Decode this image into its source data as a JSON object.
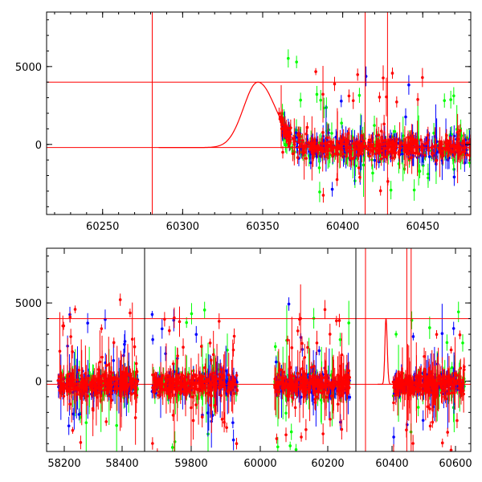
{
  "chart_data": [
    {
      "type": "scatter",
      "panel": "top",
      "x_ticks": [
        60250,
        60300,
        60350,
        60400,
        60450
      ],
      "y_ticks": [
        0,
        5000
      ],
      "xlim": [
        60215,
        60480
      ],
      "ylim": [
        -4500,
        8500
      ],
      "hlines": [
        4000,
        -200
      ],
      "vlines": [
        60281,
        60414,
        60428
      ],
      "model_curve": {
        "peak_x": 60347,
        "peak_y": 4000,
        "base_y": -200,
        "rise_sigma": 9,
        "decay_sigma": 5
      },
      "series": [
        {
          "color": "#ff0000",
          "x_start": 60360,
          "x_end": 60480,
          "spread": 300
        },
        {
          "color": "#0000ff",
          "x_start": 60362,
          "x_end": 60480,
          "spread": 400
        },
        {
          "color": "#00ff00",
          "x_start": 60362,
          "x_end": 60480,
          "spread": 500
        }
      ]
    },
    {
      "type": "scatter",
      "panel": "bottom",
      "x_ticks": [
        "58200",
        "58400",
        "59800",
        "60000",
        "60200",
        "60400",
        "60600"
      ],
      "y_ticks": [
        0,
        5000
      ],
      "ylim": [
        -4500,
        8500
      ],
      "hlines": [
        4000,
        -200
      ],
      "segments": [
        {
          "xlim": [
            58140,
            58440
          ],
          "data": [
            58175,
            58420
          ]
        },
        {
          "xlim": [
            59620,
            59890
          ],
          "data": [
            59640,
            59870
          ]
        },
        {
          "xlim": [
            59890,
            60250
          ],
          "data": [
            59985,
            60230
          ]
        },
        {
          "xlim": [
            60250,
            60620
          ],
          "data": [
            60370,
            60600
          ],
          "vlines": [
            60281,
            60414,
            60428
          ],
          "model_peak": 60347
        }
      ],
      "series": [
        {
          "color": "#ff0000"
        },
        {
          "color": "#0000ff"
        },
        {
          "color": "#00ff00"
        }
      ]
    }
  ]
}
